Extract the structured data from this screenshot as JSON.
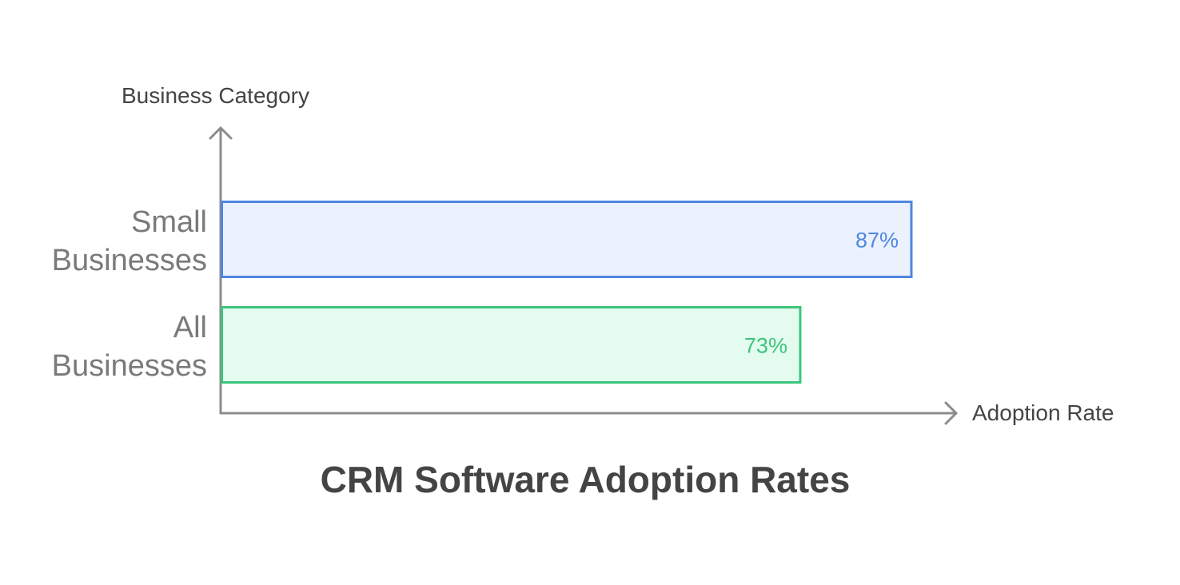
{
  "chart_data": {
    "type": "bar",
    "orientation": "horizontal",
    "title": "CRM Software Adoption Rates",
    "xlabel": "Adoption Rate",
    "ylabel": "Business Category",
    "xlim": [
      0,
      100
    ],
    "grid": false,
    "categories": [
      {
        "lines": [
          "Small",
          "Businesses"
        ]
      },
      {
        "lines": [
          "All",
          "Businesses"
        ]
      }
    ],
    "values": [
      87,
      73
    ],
    "value_labels": [
      "87%",
      "73%"
    ],
    "colors": [
      {
        "stroke": "#4f86e0",
        "fill": "#ebf2fd",
        "text": "#4f86e0"
      },
      {
        "stroke": "#3ec47c",
        "fill": "#e3fcef",
        "text": "#3ec47c"
      }
    ]
  }
}
